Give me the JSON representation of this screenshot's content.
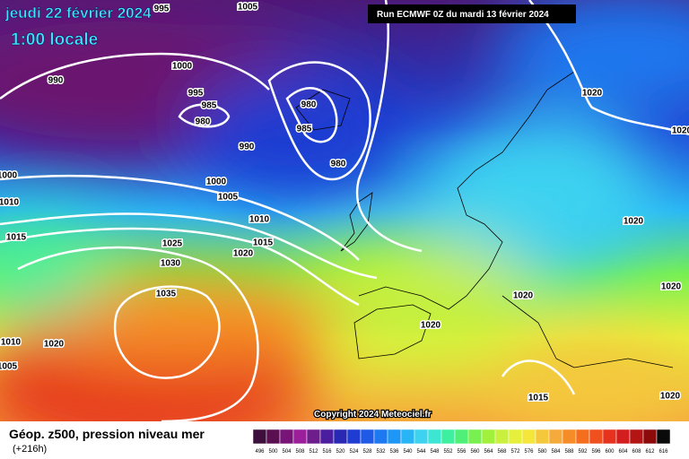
{
  "header": {
    "date": "jeudi 22 février 2024",
    "time": "1:00 locale",
    "run": "Run ECMWF 0Z du mardi 13 février 2024"
  },
  "copyright": "Copyright 2024 Meteociel.fr",
  "footer": {
    "title": "Géop. z500, pression niveau mer",
    "lead": "(+216h)"
  },
  "isobar_labels": [
    "995",
    "1005",
    "990",
    "1000",
    "995",
    "985",
    "980",
    "980",
    "985",
    "990",
    "980",
    "1000",
    "1000",
    "1005",
    "1010",
    "1010",
    "1015",
    "1015",
    "1025",
    "1020",
    "1030",
    "1035",
    "1020",
    "1020",
    "1020",
    "1020",
    "1020",
    "1020",
    "1010",
    "1020",
    "1005",
    "1015",
    "1020"
  ],
  "scale": {
    "labels": [
      "496",
      "500",
      "504",
      "508",
      "512",
      "516",
      "520",
      "524",
      "528",
      "532",
      "536",
      "540",
      "544",
      "548",
      "552",
      "556",
      "560",
      "564",
      "568",
      "572",
      "576",
      "580",
      "584",
      "588",
      "592",
      "596",
      "600",
      "604",
      "608",
      "612",
      "616"
    ],
    "colors": [
      "#3c0f3c",
      "#5a1050",
      "#781478",
      "#9b1e9b",
      "#6e1e8c",
      "#4b1ea0",
      "#2828b4",
      "#1e3cd2",
      "#1e5ae6",
      "#1e78f0",
      "#1e96f5",
      "#28b4f5",
      "#3cd2f0",
      "#3ce6d2",
      "#3cf0a0",
      "#50f078",
      "#78f050",
      "#a0f03c",
      "#c8f03c",
      "#e6f03c",
      "#f5e63c",
      "#f5c83c",
      "#f5aa3c",
      "#f58c28",
      "#f56e1e",
      "#f0501e",
      "#e6321e",
      "#d21e1e",
      "#b41414",
      "#8c0a0a",
      "#0a0a0a"
    ]
  }
}
